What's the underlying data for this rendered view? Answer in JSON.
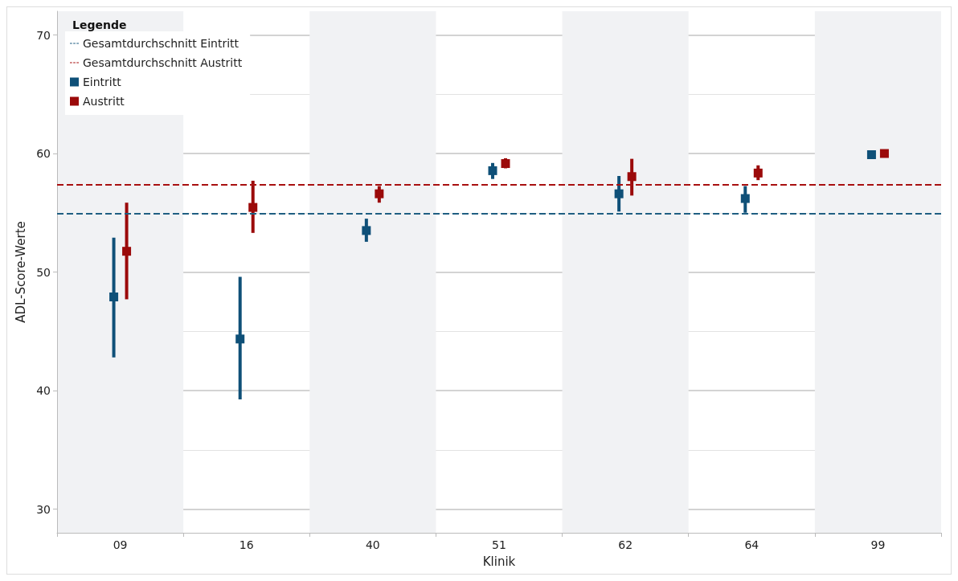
{
  "chart_data": {
    "type": "scatter",
    "xlabel": "Klinik",
    "ylabel": "ADL-Score-Werte",
    "legend_title": "Legende",
    "categories": [
      "09",
      "16",
      "40",
      "51",
      "62",
      "64",
      "99"
    ],
    "series": [
      {
        "name": "Eintritt",
        "color": "#0f5078",
        "values": [
          47.9,
          44.35,
          53.5,
          58.55,
          56.6,
          56.2,
          59.9
        ],
        "errors": [
          [
            42.8,
            52.9
          ],
          [
            39.25,
            49.6
          ],
          [
            52.55,
            54.5
          ],
          [
            57.85,
            59.2
          ],
          [
            55.1,
            58.1
          ],
          [
            55.0,
            57.25
          ],
          null
        ]
      },
      {
        "name": "Austritt",
        "color": "#9b0a0a",
        "values": [
          51.75,
          55.45,
          56.6,
          59.15,
          58.05,
          58.35,
          60.0
        ],
        "errors": [
          [
            47.7,
            55.85
          ],
          [
            53.3,
            57.7
          ],
          [
            55.85,
            57.25
          ],
          [
            58.75,
            59.6
          ],
          [
            56.45,
            59.55
          ],
          [
            57.75,
            59.0
          ],
          null
        ]
      }
    ],
    "ref_lines": [
      {
        "axis": "y",
        "value": 54.9,
        "label": "Gesamtdurchschnitt Eintritt",
        "color": "#1f5f82",
        "line_style": "dashed"
      },
      {
        "axis": "y",
        "value": 57.4,
        "label": "Gesamtdurchschnitt Austritt",
        "color": "#a81010",
        "line_style": "dashed"
      }
    ],
    "bands": [
      {
        "axis": "x",
        "from": "09",
        "to": "09",
        "color": "#f1f2f4"
      },
      {
        "axis": "x",
        "from": "40",
        "to": "40",
        "color": "#f1f2f4"
      },
      {
        "axis": "x",
        "from": "62",
        "to": "62",
        "color": "#f1f2f4"
      },
      {
        "axis": "x",
        "from": "99",
        "to": "99",
        "color": "#f1f2f4"
      }
    ],
    "ylim": [
      28,
      72
    ],
    "yticks": [
      30,
      40,
      50,
      60,
      70
    ],
    "grid": "y",
    "legend": "top left",
    "marker": "square"
  }
}
